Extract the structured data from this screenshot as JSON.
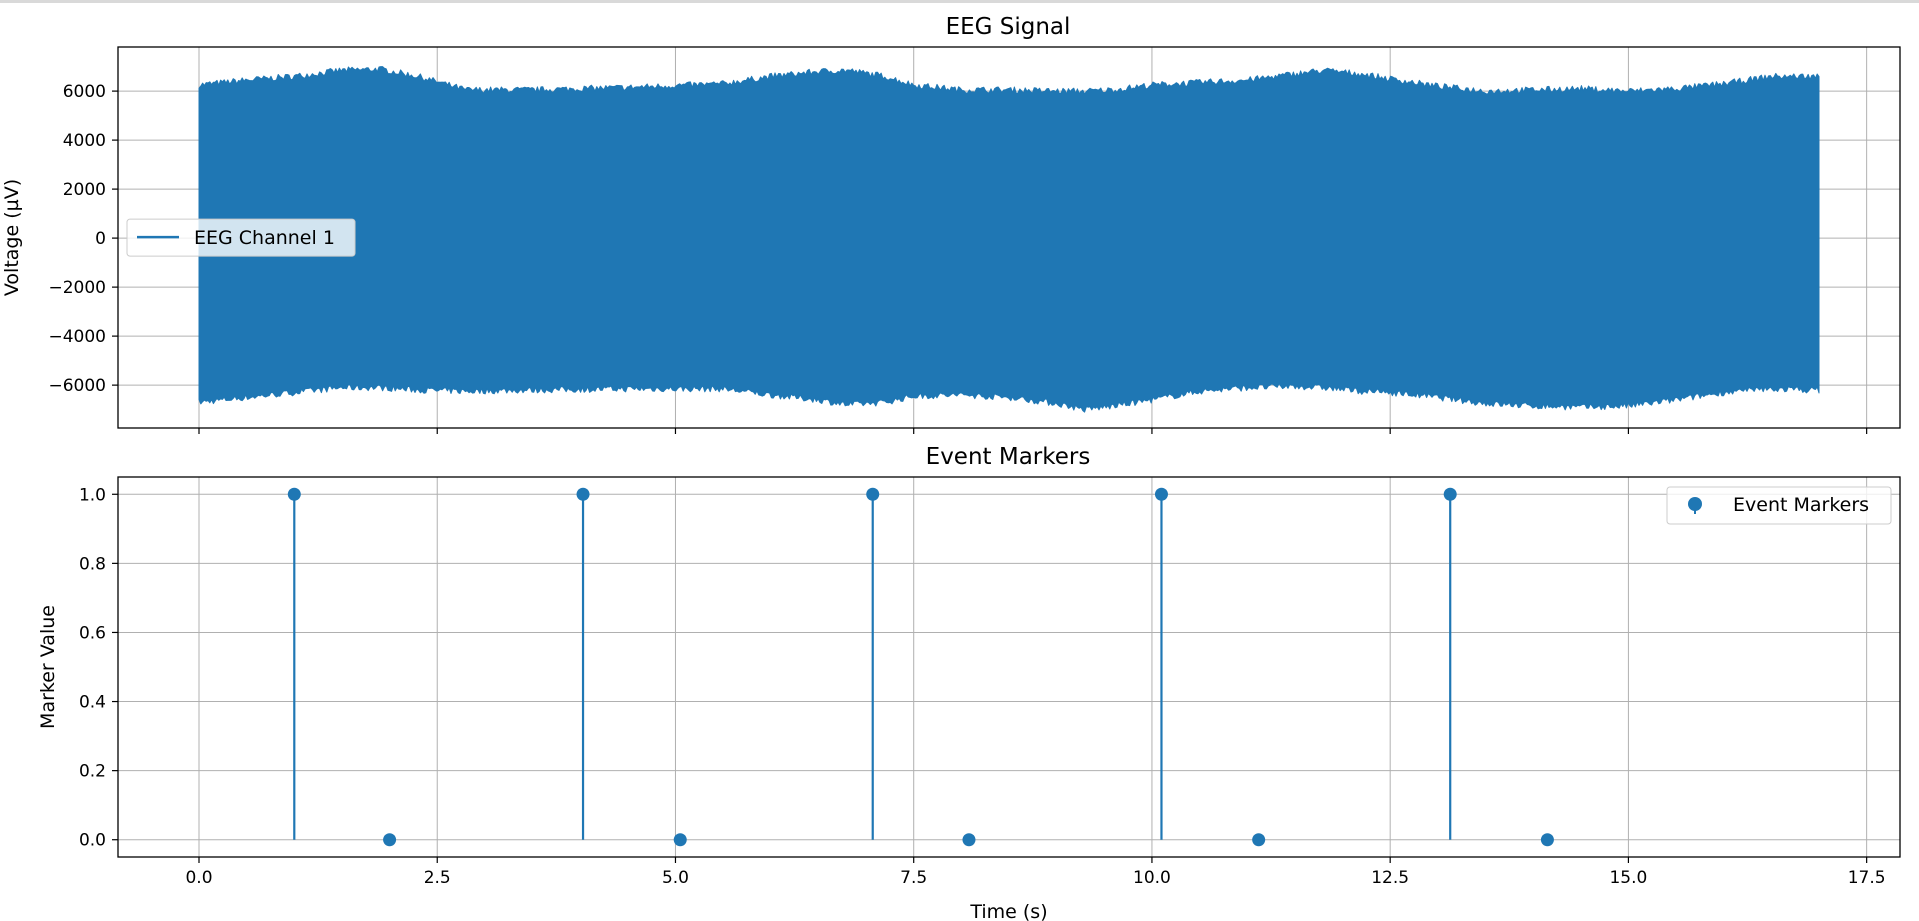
{
  "chart_data": [
    {
      "type": "line",
      "title": "EEG Signal",
      "xlabel": "",
      "ylabel": "Voltage (µV)",
      "xlim": [
        -0.85,
        17.85
      ],
      "ylim": [
        -7750,
        7800
      ],
      "yticks": [
        -6000,
        -4000,
        -2000,
        0,
        2000,
        4000,
        6000
      ],
      "ytick_labels": [
        "−6000",
        "−4000",
        "−2000",
        "0",
        "2000",
        "4000",
        "6000"
      ],
      "xticks": [
        0,
        2.5,
        5,
        7.5,
        10,
        12.5,
        15,
        17.5
      ],
      "show_xtick_labels": false,
      "grid": true,
      "legend": {
        "position": "center-left",
        "entries": [
          "EEG Channel 1"
        ]
      },
      "color": "#1f77b4",
      "series": [
        {
          "name": "EEG Channel 1",
          "x": [
            0,
            0.5,
            1,
            1.5,
            1.9,
            2.3,
            2.8,
            3.5,
            4.5,
            5.5,
            6,
            6.5,
            6.8,
            7.2,
            7.5,
            8,
            8.5,
            9,
            9.3,
            9.6,
            10,
            10.5,
            11,
            11.5,
            11.8,
            12.2,
            12.5,
            13,
            13.5,
            14,
            14.5,
            15,
            15.5,
            16,
            16.5,
            17
          ],
          "upper": [
            6250,
            6450,
            6600,
            6850,
            6900,
            6600,
            6050,
            6050,
            6150,
            6300,
            6600,
            6800,
            6850,
            6600,
            6250,
            6050,
            6050,
            6000,
            6000,
            6050,
            6250,
            6350,
            6450,
            6700,
            6850,
            6700,
            6500,
            6200,
            6000,
            6050,
            6100,
            6000,
            6100,
            6300,
            6600,
            6600
          ],
          "lower": [
            -6700,
            -6500,
            -6300,
            -6100,
            -6100,
            -6200,
            -6250,
            -6200,
            -6150,
            -6150,
            -6400,
            -6600,
            -6800,
            -6700,
            -6450,
            -6400,
            -6500,
            -6750,
            -7000,
            -6850,
            -6600,
            -6250,
            -6100,
            -6050,
            -6100,
            -6250,
            -6300,
            -6500,
            -6750,
            -6850,
            -6900,
            -6850,
            -6600,
            -6300,
            -6150,
            -6200
          ]
        }
      ]
    },
    {
      "type": "scatter",
      "subtype": "stem",
      "title": "Event Markers",
      "xlabel": "Time (s)",
      "ylabel": "Marker Value",
      "xlim": [
        -0.85,
        17.85
      ],
      "ylim": [
        -0.05,
        1.05
      ],
      "xticks": [
        0,
        2.5,
        5,
        7.5,
        10,
        12.5,
        15,
        17.5
      ],
      "xtick_labels": [
        "0.0",
        "2.5",
        "5.0",
        "7.5",
        "10.0",
        "12.5",
        "15.0",
        "17.5"
      ],
      "yticks": [
        0,
        0.2,
        0.4,
        0.6,
        0.8,
        1.0
      ],
      "ytick_labels": [
        "0.0",
        "0.2",
        "0.4",
        "0.6",
        "0.8",
        "1.0"
      ],
      "grid": true,
      "legend": {
        "position": "top-right",
        "entries": [
          "Event Markers"
        ]
      },
      "color": "#1f77b4",
      "series": [
        {
          "name": "Event Markers",
          "x": [
            1.0,
            2.0,
            4.03,
            5.05,
            7.07,
            8.08,
            10.1,
            11.12,
            13.13,
            14.15
          ],
          "y": [
            1,
            0,
            1,
            0,
            1,
            0,
            1,
            0,
            1,
            0
          ]
        }
      ]
    }
  ]
}
